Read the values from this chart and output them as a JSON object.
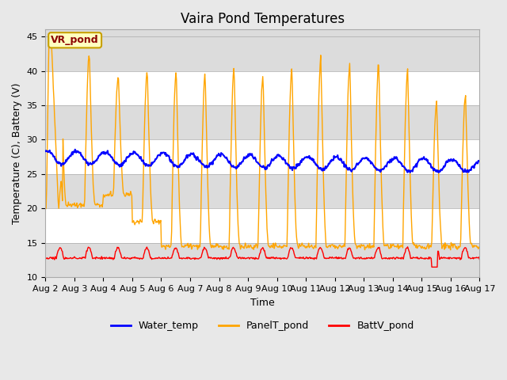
{
  "title": "Vaira Pond Temperatures",
  "ylabel": "Temperature (C), Battery (V)",
  "xlabel": "Time",
  "annotation": "VR_pond",
  "ylim": [
    10,
    46
  ],
  "yticks": [
    10,
    15,
    20,
    25,
    30,
    35,
    40,
    45
  ],
  "x_tick_labels": [
    "Aug 2",
    "Aug 3",
    "Aug 4",
    "Aug 5",
    "Aug 6",
    "Aug 7",
    "Aug 8",
    "Aug 9",
    "Aug 10",
    "Aug 11",
    "Aug 12",
    "Aug 13",
    "Aug 14",
    "Aug 15",
    "Aug 16",
    "Aug 17"
  ],
  "legend_labels": [
    "Water_temp",
    "PanelT_pond",
    "BattV_pond"
  ],
  "water_color": "#0000FF",
  "panel_color": "#FFA500",
  "batt_color": "#FF0000",
  "figure_bg": "#E8E8E8",
  "plot_bg": "#FFFFFF",
  "band_color": "#DCDCDC",
  "title_fontsize": 12,
  "axis_label_fontsize": 9,
  "tick_fontsize": 8,
  "legend_fontsize": 9,
  "annot_fontsize": 9,
  "annot_color": "#8B0000",
  "annot_bg": "#FFFFC0",
  "annot_edge": "#C8A000"
}
